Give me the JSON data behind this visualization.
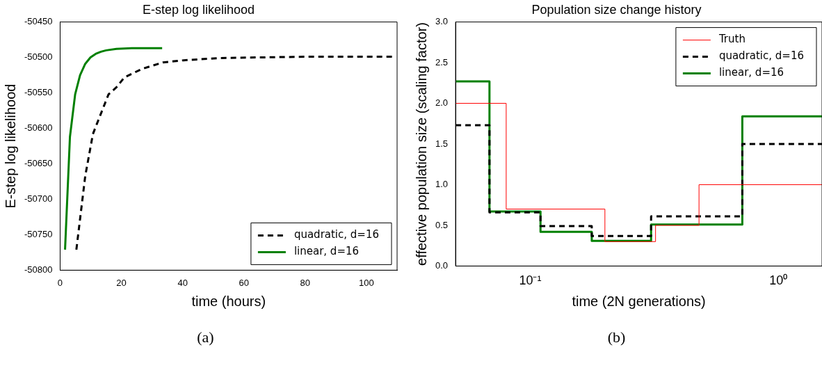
{
  "chart_data": [
    {
      "type": "line",
      "title": "E-step log likelihood",
      "xlabel": "time (hours)",
      "ylabel": "E-step log likelihood",
      "xlim": [
        0,
        110
      ],
      "xticks": [
        0,
        20,
        40,
        60,
        80,
        100
      ],
      "ylim": [
        -50800,
        -50450
      ],
      "yticks": [
        -50800,
        -50750,
        -50700,
        -50650,
        -50600,
        -50550,
        -50500,
        -50450
      ],
      "grid": false,
      "legend": "bottom right",
      "annotations": [
        "(a)"
      ],
      "series": [
        {
          "name": "quadratic, d=16",
          "color": "#000000",
          "line_style": "dashed",
          "x": [
            5.3,
            8.2,
            10.7,
            11.6,
            15.8,
            18.4,
            21,
            26.8,
            33.6,
            40.3,
            51.4,
            64,
            80.9,
            109
          ],
          "values": [
            -50771,
            -50667,
            -50608,
            -50598,
            -50552,
            -50542,
            -50528,
            -50516,
            -50507,
            -50504,
            -50501,
            -50500,
            -50499,
            -50499
          ]
        },
        {
          "name": "linear, d=16",
          "color": "#008000",
          "line_style": "solid",
          "x": [
            1.6,
            3.2,
            4.9,
            6.5,
            8.2,
            9.9,
            11.6,
            13.3,
            15,
            18.4,
            23.4,
            33.3
          ],
          "values": [
            -50771,
            -50612,
            -50552,
            -50525,
            -50509,
            -50500,
            -50495,
            -50492,
            -50490,
            -50488,
            -50487,
            -50487
          ]
        }
      ]
    },
    {
      "type": "step",
      "title": "Population size change history",
      "xlabel": "time (2N generations)",
      "ylabel": "effective population size (scaling factor)",
      "log": "x",
      "xlim": [
        0.05,
        1.5
      ],
      "xticks": [
        {
          "value": 0.1,
          "label": "10⁻¹"
        },
        {
          "value": 1,
          "label": "10⁰"
        }
      ],
      "ylim": [
        0,
        3
      ],
      "yticks": [
        {
          "value": 0,
          "label": "0.0"
        },
        {
          "value": 0.5,
          "label": "0.5"
        },
        {
          "value": 1,
          "label": "1.0"
        },
        {
          "value": 1.5,
          "label": "1.5"
        },
        {
          "value": 2,
          "label": "2.0"
        },
        {
          "value": 2.5,
          "label": "2.5"
        },
        {
          "value": 3,
          "label": "3.0"
        }
      ],
      "grid": false,
      "legend": "top right",
      "annotations": [
        "(b)"
      ],
      "series": [
        {
          "name": "Truth",
          "color": "#ff0000",
          "line_style": "solid",
          "x": [
            0.05,
            0.08,
            0.2,
            0.32,
            0.479,
            1.5
          ],
          "values": [
            2,
            0.7,
            0.3,
            0.5,
            1,
            1
          ]
        },
        {
          "name": "quadratic, d=16",
          "color": "#000000",
          "line_style": "dashed",
          "x": [
            0.05,
            0.0685,
            0.11,
            0.177,
            0.307,
            0.716,
            1.5
          ],
          "values": [
            1.73,
            0.66,
            0.49,
            0.37,
            0.61,
            1.5,
            1.5
          ]
        },
        {
          "name": "linear, d=16",
          "color": "#008000",
          "line_style": "solid",
          "x": [
            0.05,
            0.0685,
            0.11,
            0.177,
            0.307,
            0.716,
            1.5
          ],
          "values": [
            2.27,
            0.67,
            0.42,
            0.31,
            0.51,
            1.84,
            1.84
          ]
        }
      ]
    }
  ]
}
